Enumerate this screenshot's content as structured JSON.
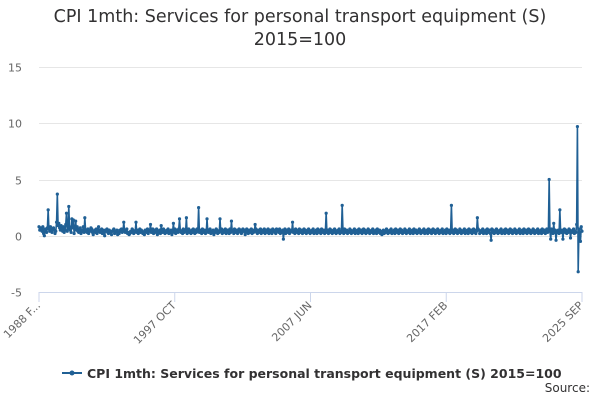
{
  "title_line1": "CPI 1mth: Services for personal transport equipment (S)",
  "title_line2": "2015=100",
  "legend_label": "CPI 1mth: Services for personal transport equipment (S) 2015=100",
  "source_label": "Source:",
  "colors": {
    "series": "#206095",
    "grid": "#e6e6e6",
    "axis": "#ccd6eb",
    "text": "#666666"
  },
  "chart_data": {
    "type": "line",
    "title": "CPI 1mth: Services for personal transport equipment (S) 2015=100",
    "xlabel": "",
    "ylabel": "",
    "ylim": [
      -5,
      15
    ],
    "yticks": [
      -5,
      0,
      5,
      10,
      15
    ],
    "x_start": "1988 JAN",
    "x_end": "2025 SEP",
    "x_tick_labels": [
      "1988 F...",
      "1997 OCT",
      "2007 JUN",
      "2017 FEB",
      "2025 SEP"
    ],
    "grid": true,
    "legend": "bottom",
    "series": [
      {
        "name": "CPI 1mth: Services for personal transport equipment (S) 2015=100",
        "values": [
          0.8,
          0.5,
          0.7,
          0.6,
          0.4,
          0.8,
          0.2,
          0.0,
          0.6,
          0.5,
          0.3,
          0.7,
          2.3,
          0.6,
          0.4,
          0.8,
          0.5,
          0.3,
          0.6,
          0.7,
          0.5,
          0.2,
          0.4,
          1.2,
          3.7,
          0.9,
          1.1,
          0.7,
          0.5,
          0.9,
          0.6,
          0.4,
          0.8,
          0.3,
          0.5,
          1.0,
          2.0,
          0.4,
          0.6,
          2.6,
          0.8,
          0.5,
          0.3,
          1.5,
          0.7,
          1.4,
          0.2,
          0.6,
          1.3,
          0.5,
          0.8,
          0.4,
          0.3,
          0.6,
          0.7,
          0.2,
          0.5,
          0.4,
          0.8,
          0.3,
          1.6,
          0.5,
          0.4,
          0.3,
          0.6,
          0.2,
          0.5,
          0.4,
          0.7,
          0.6,
          0.3,
          0.1,
          0.4,
          0.5,
          0.3,
          0.6,
          0.2,
          0.4,
          0.8,
          0.5,
          0.3,
          0.4,
          0.6,
          0.2,
          0.5,
          0.3,
          0.0,
          0.5,
          0.4,
          0.6,
          0.3,
          0.2,
          0.5,
          0.4,
          0.3,
          0.1,
          0.4,
          0.5,
          0.6,
          0.2,
          0.3,
          0.4,
          0.5,
          0.1,
          0.3,
          0.2,
          0.5,
          0.4,
          0.6,
          0.3,
          0.4,
          1.2,
          0.5,
          0.3,
          0.4,
          0.6,
          0.2,
          0.3,
          0.1,
          0.2,
          0.4,
          0.3,
          0.6,
          0.5,
          0.2,
          0.3,
          0.4,
          1.2,
          0.3,
          0.5,
          0.2,
          0.4,
          0.6,
          0.3,
          0.5,
          0.4,
          0.2,
          0.3,
          0.1,
          0.5,
          0.4,
          0.3,
          0.6,
          0.2,
          0.4,
          0.5,
          1.0,
          0.3,
          0.4,
          0.6,
          0.2,
          0.5,
          0.3,
          0.4,
          0.6,
          0.1,
          0.4,
          0.3,
          0.5,
          0.2,
          0.9,
          0.4,
          0.3,
          0.6,
          0.5,
          0.2,
          0.4,
          0.3,
          0.5,
          0.6,
          0.2,
          0.4,
          0.3,
          0.5,
          0.1,
          0.4,
          1.1,
          0.3,
          0.6,
          0.2,
          0.5,
          0.4,
          0.3,
          0.6,
          1.5,
          0.5,
          0.3,
          0.4,
          0.2,
          0.6,
          0.3,
          0.5,
          0.4,
          1.6,
          0.2,
          0.5,
          0.6,
          0.3,
          0.4,
          0.2,
          0.5,
          0.3,
          0.6,
          0.4,
          0.2,
          0.5,
          0.3,
          0.6,
          0.4,
          2.5,
          0.3,
          0.4,
          0.5,
          0.2,
          0.6,
          0.3,
          0.4,
          0.5,
          0.2,
          0.3,
          1.5,
          0.4,
          0.3,
          0.5,
          0.6,
          0.2,
          0.4,
          0.3,
          0.5,
          0.1,
          0.4,
          0.3,
          0.6,
          0.5,
          0.2,
          0.4,
          0.3,
          1.5,
          0.4,
          0.6,
          0.2,
          0.5,
          0.3,
          0.4,
          0.6,
          0.2,
          0.3,
          0.5,
          0.4,
          0.2,
          0.6,
          0.3,
          1.3,
          0.4,
          0.5,
          0.2,
          0.6,
          0.3,
          0.4,
          0.5,
          0.2,
          0.3,
          0.6,
          0.4,
          0.5,
          0.2,
          0.3,
          0.6,
          0.4,
          0.5,
          0.1,
          0.3,
          0.6,
          0.4,
          0.2,
          0.5,
          0.3,
          0.4,
          0.6,
          0.2,
          0.5,
          0.3,
          0.4,
          1.0,
          0.6,
          0.3,
          0.2,
          0.5,
          0.4,
          0.3,
          0.6,
          0.2,
          0.5,
          0.4,
          0.3,
          0.6,
          0.2,
          0.4,
          0.5,
          0.3,
          0.6,
          0.2,
          0.4,
          0.5,
          0.3,
          0.2,
          0.6,
          0.4,
          0.5,
          0.3,
          0.2,
          0.6,
          0.4,
          0.5,
          0.3,
          0.6,
          0.2,
          0.4,
          0.3,
          0.5,
          -0.3,
          0.4,
          0.6,
          0.2,
          0.5,
          0.3,
          0.4,
          0.6,
          0.2,
          0.3,
          0.5,
          0.4,
          1.2,
          0.3,
          0.5,
          0.2,
          0.6,
          0.4,
          0.3,
          0.5,
          0.2,
          0.6,
          0.4,
          0.3,
          0.5,
          0.2,
          0.4,
          0.6,
          0.3,
          0.5,
          0.2,
          0.4,
          0.3,
          0.6,
          0.5,
          0.2,
          0.4,
          0.3,
          0.5,
          0.6,
          0.2,
          0.4,
          0.3,
          0.5,
          0.2,
          0.6,
          0.4,
          0.3,
          0.5,
          0.2,
          0.6,
          0.4,
          0.3,
          0.5,
          0.2,
          0.4,
          2.0,
          0.3,
          0.5,
          0.2,
          0.4,
          0.6,
          0.3,
          0.5,
          0.2,
          0.4,
          0.3,
          0.6,
          0.5,
          0.2,
          0.4,
          0.3,
          0.5,
          0.6,
          0.2,
          0.4,
          0.3,
          2.7,
          0.5,
          0.2,
          0.6,
          0.4,
          0.3,
          0.5,
          0.2,
          0.4,
          0.3,
          0.6,
          0.5,
          0.2,
          0.4,
          0.3,
          0.5,
          0.6,
          0.2,
          0.4,
          0.3,
          0.5,
          0.2,
          0.6,
          0.4,
          0.3,
          0.5,
          0.2,
          0.4,
          0.6,
          0.3,
          0.5,
          0.2,
          0.4,
          0.3,
          0.6,
          0.5,
          0.2,
          0.4,
          0.3,
          0.5,
          0.6,
          0.2,
          0.4,
          0.3,
          0.5,
          0.2,
          0.6,
          0.4,
          0.3,
          0.5,
          0.2,
          0.4,
          0.1,
          0.3,
          0.5,
          0.2,
          0.4,
          0.3,
          0.6,
          0.5,
          0.2,
          0.4,
          0.3,
          0.5,
          0.6,
          0.2,
          0.4,
          0.3,
          0.5,
          0.2,
          0.6,
          0.4,
          0.3,
          0.5,
          0.2,
          0.4,
          0.6,
          0.3,
          0.5,
          0.2,
          0.4,
          0.3,
          0.6,
          0.5,
          0.2,
          0.4,
          0.3,
          0.5,
          0.6,
          0.2,
          0.4,
          0.3,
          0.5,
          0.2,
          0.6,
          0.4,
          0.3,
          0.5,
          0.2,
          0.4,
          0.3,
          0.6,
          0.5,
          0.2,
          0.4,
          0.3,
          0.5,
          0.6,
          0.2,
          0.4,
          0.3,
          0.5,
          0.2,
          0.6,
          0.4,
          0.3,
          0.5,
          0.2,
          0.4,
          0.6,
          0.3,
          0.5,
          0.2,
          0.4,
          0.3,
          0.6,
          0.5,
          0.2,
          0.4,
          0.3,
          0.5,
          0.6,
          0.2,
          0.4,
          0.3,
          0.5,
          0.2,
          0.6,
          0.4,
          0.3,
          0.5,
          0.2,
          0.4,
          2.7,
          0.3,
          0.5,
          0.2,
          0.4,
          0.6,
          0.3,
          0.5,
          0.2,
          0.4,
          0.3,
          0.6,
          0.5,
          0.2,
          0.4,
          0.3,
          0.5,
          0.6,
          0.2,
          0.4,
          0.3,
          0.5,
          0.2,
          0.6,
          0.4,
          0.3,
          0.5,
          0.2,
          0.4,
          0.6,
          0.3,
          0.5,
          0.2,
          0.4,
          1.6,
          0.6,
          0.5,
          0.2,
          0.4,
          0.3,
          0.5,
          0.6,
          0.2,
          0.4,
          0.3,
          0.5,
          0.2,
          0.6,
          0.4,
          0.3,
          0.5,
          0.2,
          -0.4,
          0.6,
          0.3,
          0.5,
          0.2,
          0.4,
          0.3,
          0.6,
          0.5,
          0.2,
          0.4,
          0.3,
          0.5,
          0.6,
          0.2,
          0.4,
          0.3,
          0.5,
          0.2,
          0.6,
          0.4,
          0.3,
          0.5,
          0.2,
          0.4,
          0.6,
          0.3,
          0.5,
          0.2,
          0.4,
          0.3,
          0.6,
          0.5,
          0.2,
          0.4,
          0.3,
          0.5,
          0.6,
          0.2,
          0.4,
          0.3,
          0.5,
          0.2,
          0.6,
          0.4,
          0.3,
          0.5,
          0.2,
          0.4,
          0.6,
          0.3,
          0.5,
          0.2,
          0.4,
          0.3,
          0.6,
          0.5,
          0.2,
          0.4,
          0.3,
          0.5,
          0.6,
          0.2,
          0.4,
          0.3,
          0.5,
          0.2,
          0.6,
          0.4,
          0.3,
          0.5,
          0.2,
          0.4,
          0.6,
          0.3,
          0.5,
          5.0,
          0.4,
          -0.3,
          0.6,
          0.5,
          0.2,
          1.1,
          0.3,
          0.5,
          -0.4,
          0.4,
          0.3,
          0.5,
          0.2,
          2.3,
          0.4,
          0.3,
          0.5,
          -0.3,
          0.4,
          0.6,
          0.3,
          0.5,
          0.2,
          0.4,
          0.3,
          0.6,
          0.5,
          -0.2,
          0.4,
          0.3,
          0.5,
          0.6,
          0.2,
          0.4,
          0.3,
          1.0,
          9.7,
          -3.2,
          0.6,
          0.3,
          -0.5,
          0.8,
          0.4
        ]
      }
    ]
  }
}
